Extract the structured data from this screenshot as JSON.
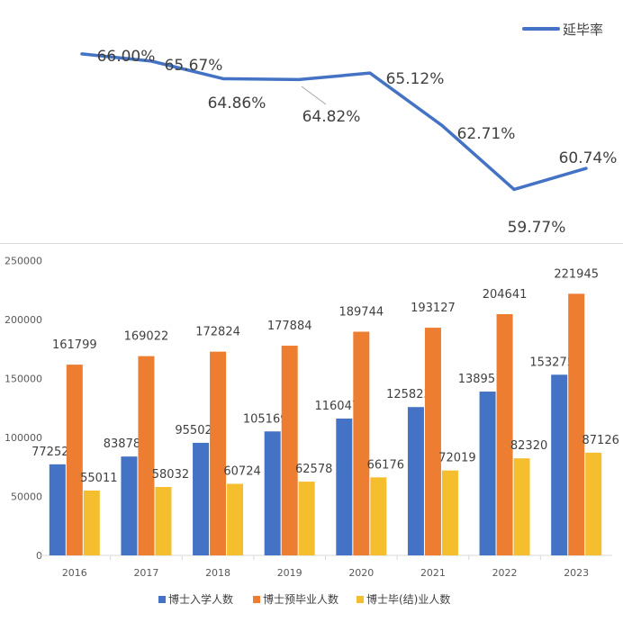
{
  "chart_data": [
    {
      "type": "line",
      "categories": [
        "2016",
        "2017",
        "2018",
        "2019",
        "2020",
        "2021",
        "2022",
        "2023"
      ],
      "series": [
        {
          "name": "延毕率",
          "values": [
            66.0,
            65.67,
            64.86,
            64.82,
            65.12,
            62.71,
            59.77,
            60.74
          ],
          "labels": [
            "66.00%",
            "65.67%",
            "64.86%",
            "64.82%",
            "65.12%",
            "62.71%",
            "59.77%",
            "60.74%"
          ],
          "color": "#4472C4"
        }
      ],
      "legend": "top-right",
      "grid": false
    },
    {
      "type": "bar",
      "categories": [
        "2016",
        "2017",
        "2018",
        "2019",
        "2020",
        "2021",
        "2022",
        "2023"
      ],
      "series": [
        {
          "name": "博士入学人数",
          "values": [
            77252,
            83878,
            95502,
            105169,
            116047,
            125823,
            138951,
            153275
          ],
          "color": "#4472C4"
        },
        {
          "name": "博士预毕业人数",
          "values": [
            161799,
            169022,
            172824,
            177884,
            189744,
            193127,
            204641,
            221945
          ],
          "color": "#ED7D31"
        },
        {
          "name": "博士毕(结)业人数",
          "values": [
            55011,
            58032,
            60724,
            62578,
            66176,
            72019,
            82320,
            87126
          ],
          "color": "#F5BE2E"
        }
      ],
      "ylim": [
        0,
        250000
      ],
      "yticks": [
        "0",
        "50000",
        "100000",
        "150000",
        "200000",
        "250000"
      ],
      "legend": "bottom",
      "grid": false
    }
  ]
}
